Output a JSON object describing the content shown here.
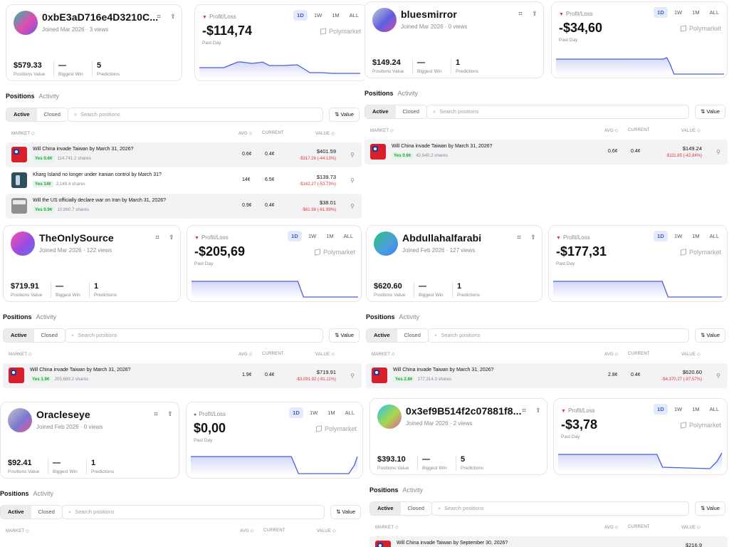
{
  "common": {
    "joined_prefix": "Joined",
    "views_suffix": "views",
    "positions_value_label": "Positions Value",
    "biggest_win_label": "Biggest Win",
    "predictions_label": "Predictions",
    "pl_label": "Profit/Loss",
    "period_label": "Past Day",
    "timeframes": [
      "1D",
      "1W",
      "1M",
      "ALL"
    ],
    "brand": "Polymarket",
    "tab_positions": "Positions",
    "tab_activity": "Activity",
    "filter_active": "Active",
    "filter_closed": "Closed",
    "search_placeholder": "Search positions",
    "sort_value": "Value",
    "col_market": "MARKET",
    "col_avg": "AVG",
    "col_current": "CURRENT",
    "col_value": "VALUE"
  },
  "colors": {
    "accent": "#3a5bd9",
    "loss": "#d83a3a",
    "gain": "#2a9b49",
    "chart_line": "#4c5fd8"
  },
  "profiles": [
    {
      "username": "0xbE3aD716e4D3210C...",
      "joined": "Mar 2026",
      "views": "3 views",
      "positions_value": "$579.33",
      "biggest_win": "—",
      "predictions": "5",
      "pl_value": "-$114,74",
      "positions": [
        {
          "title": "Will China invade Taiwan by March 31, 2026?",
          "side": "Yes 0.6¢",
          "shares": "114,741.2 shares",
          "avg": "0.6¢",
          "current": "0.4¢",
          "value": "$401.59",
          "change": "-$317.26 (-44.13%)"
        },
        {
          "title": "Kharg Island no longer under Iranian control by March 31?",
          "side": "Yes 14¢",
          "shares": "2,149.4 shares",
          "avg": "14¢",
          "current": "6.5¢",
          "value": "$139.73",
          "change": "-$162.27 (-53.73%)"
        },
        {
          "title": "Will the US officially declare war on Iran by March 31, 2026?",
          "side": "Yes 0.9¢",
          "shares": "10,860.7 shares",
          "avg": "0.9¢",
          "current": "0.4¢",
          "value": "$38.01",
          "change": "-$61.98 (-61.99%)"
        }
      ]
    },
    {
      "username": "bluesmirror",
      "joined": "Mar 2026",
      "views": "0 views",
      "positions_value": "$149.24",
      "biggest_win": "—",
      "predictions": "1",
      "pl_value": "-$34,60",
      "positions": [
        {
          "title": "Will China invade Taiwan by March 31, 2026?",
          "side": "Yes 0.6¢",
          "shares": "42,640.2 shares",
          "avg": "0.6¢",
          "current": "0.4¢",
          "value": "$149.24",
          "change": "-$111.85 (-42.84%)"
        }
      ]
    },
    {
      "username": "TheOnlySource",
      "joined": "Mar 2026",
      "views": "122 views",
      "positions_value": "$719.91",
      "biggest_win": "—",
      "predictions": "1",
      "pl_value": "-$205,69",
      "positions": [
        {
          "title": "Will China invade Taiwan by March 31, 2026?",
          "side": "Yes 1.9¢",
          "shares": "205,689.2 shares",
          "avg": "1.9¢",
          "current": "0.4¢",
          "value": "$719.91",
          "change": "-$3,091.92 (-81.11%)"
        }
      ]
    },
    {
      "username": "Abdullahalfarabi",
      "joined": "Feb 2026",
      "views": "127 views",
      "positions_value": "$620.60",
      "biggest_win": "—",
      "predictions": "1",
      "pl_value": "-$177,31",
      "positions": [
        {
          "title": "Will China invade Taiwan by March 31, 2026?",
          "side": "Yes 2.8¢",
          "shares": "177,314.3 shares",
          "avg": "2.8¢",
          "current": "0.4¢",
          "value": "$620.60",
          "change": "-$4,370.27 (-87.57%)"
        }
      ]
    },
    {
      "username": "Oracleseye",
      "joined": "Feb 2026",
      "views": "0 views",
      "positions_value": "$92.41",
      "biggest_win": "—",
      "predictions": "1",
      "pl_value": "$0,00",
      "positions": []
    },
    {
      "username": "0x3ef9B514f2c07881f8...",
      "joined": "Mar 2026",
      "views": "2 views",
      "positions_value": "$393.10",
      "biggest_win": "—",
      "predictions": "5",
      "pl_value": "-$3,78",
      "positions": [
        {
          "title": "Will China invade Taiwan by September 30, 2026?",
          "side": "",
          "shares": "",
          "avg": "",
          "current": "",
          "value": "$216.9",
          "change": ""
        }
      ]
    }
  ]
}
